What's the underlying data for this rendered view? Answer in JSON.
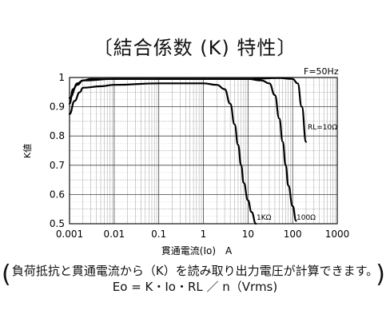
{
  "title": "〔結合係数 (K) 特性〕",
  "note_line1": "負荷抵抗と貫通電流から（K）を読み取り出力電圧が計算できます。",
  "note_line2": "Eo = K・Io・RL ／ n（Vrms)",
  "chart_data": {
    "type": "line",
    "title": "",
    "xlabel": "貫通電流(Io)　A",
    "ylabel": "K値",
    "x_scale": "log",
    "xlim": [
      0.001,
      1000
    ],
    "ylim": [
      0.5,
      1.0
    ],
    "x_ticks": [
      "0.001",
      "0.01",
      "0.1",
      "1",
      "10",
      "100",
      "1000"
    ],
    "x_tick_values": [
      0.001,
      0.01,
      0.1,
      1,
      10,
      100,
      1000
    ],
    "y_ticks": [
      "0.5",
      "0.6",
      "0.7",
      "0.8",
      "0.9",
      "1"
    ],
    "y_tick_values": [
      0.5,
      0.6,
      0.7,
      0.8,
      0.9,
      1.0
    ],
    "grid": true,
    "annotations": [
      "F=50Hz",
      "RL=10Ω",
      "1KΩ",
      "100Ω"
    ],
    "series": [
      {
        "name": "RL=10Ω",
        "x": [
          0.001,
          0.0015,
          0.002,
          0.003,
          0.01,
          0.1,
          1,
          10,
          50,
          100,
          130,
          160,
          200
        ],
        "y": [
          0.93,
          0.975,
          0.99,
          0.995,
          0.995,
          0.995,
          0.995,
          0.995,
          0.998,
          0.995,
          0.98,
          0.9,
          0.78
        ]
      },
      {
        "name": "1KΩ",
        "x": [
          0.001,
          0.0013,
          0.0017,
          0.002,
          0.005,
          0.01,
          0.1,
          1,
          2,
          3,
          4,
          5,
          6,
          7,
          8,
          10,
          12,
          15
        ],
        "y": [
          0.875,
          0.92,
          0.95,
          0.965,
          0.97,
          0.975,
          0.98,
          0.98,
          0.975,
          0.96,
          0.91,
          0.84,
          0.77,
          0.7,
          0.64,
          0.58,
          0.54,
          0.5
        ]
      },
      {
        "name": "100Ω",
        "x": [
          0.001,
          0.0012,
          0.0015,
          0.002,
          0.01,
          0.1,
          1,
          10,
          20,
          30,
          40,
          50,
          60,
          70,
          80,
          100,
          120
        ],
        "y": [
          0.91,
          0.96,
          0.98,
          0.99,
          0.995,
          0.995,
          0.995,
          0.995,
          0.99,
          0.98,
          0.94,
          0.86,
          0.78,
          0.7,
          0.63,
          0.56,
          0.51
        ]
      }
    ]
  }
}
